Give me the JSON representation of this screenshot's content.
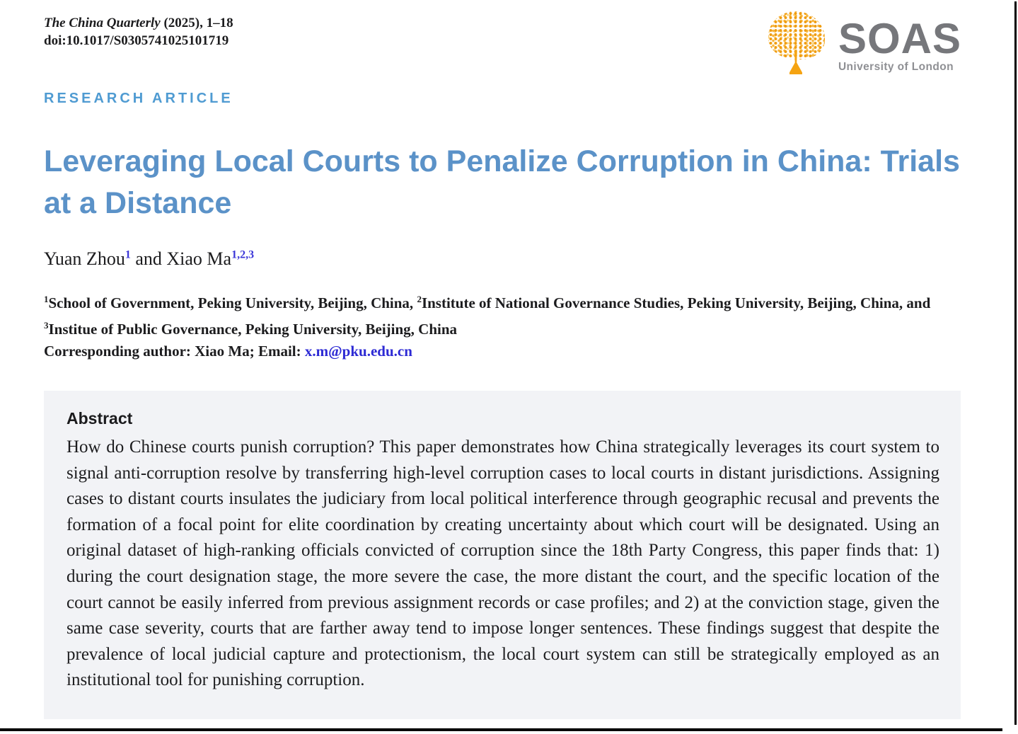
{
  "colors": {
    "title_blue": "#5b92c8",
    "label_blue": "#4f9bd2",
    "superscript_blue": "#3b36d8",
    "link_blue": "#2d2ad4",
    "abstract_bg": "#f2f3f6",
    "text": "#1c1c1e",
    "soas_gray": "#76777b",
    "soas_subtitle_gray": "#8f9094",
    "soas_orange": "#f5a312"
  },
  "header": {
    "journal_name": "The China Quarterly",
    "journal_issue": " (2025), 1–18",
    "doi": "doi:10.1017/S0305741025101719",
    "article_type_label": "RESEARCH ARTICLE"
  },
  "logo": {
    "acronym": "SOAS",
    "subtitle": "University of London"
  },
  "article": {
    "title": "Leveraging Local Courts to Penalize Corruption in China: Trials at a Distance",
    "authors_connector": " and ",
    "authors": [
      {
        "name": "Yuan Zhou",
        "superscript": "1"
      },
      {
        "name": "Xiao Ma",
        "superscript": "1,2,3"
      }
    ],
    "affiliations": [
      {
        "marker": "1",
        "text": "School of Government, Peking University, Beijing, China, "
      },
      {
        "marker": "2",
        "text": "Institute of National Governance Studies, Peking University, Beijing, China, and "
      },
      {
        "marker": "3",
        "text": "Institue of Public Governance, Peking University, Beijing, China"
      }
    ],
    "corresponding": {
      "label": "Corresponding author:",
      "name_part": " Xiao Ma; Email: ",
      "email": "x.m@pku.edu.cn"
    }
  },
  "abstract": {
    "heading": "Abstract",
    "body": "How do Chinese courts punish corruption? This paper demonstrates how China strategically leverages its court system to signal anti-corruption resolve by transferring high-level corruption cases to local courts in distant jurisdictions. Assigning cases to distant courts insulates the judiciary from local political interference through geographic recusal and prevents the formation of a focal point for elite coordination by creating uncertainty about which court will be designated. Using an original dataset of high-ranking officials convicted of corruption since the 18th Party Congress, this paper finds that: 1) during the court designation stage, the more severe the case, the more distant the court, and the specific location of the court cannot be easily inferred from previous assignment records or case profiles; and 2) at the conviction stage, given the same case severity, courts that are farther away tend to impose longer sentences. These findings suggest that despite the prevalence of local judicial capture and protectionism, the local court system can still be strategically employed as an institutional tool for punishing corruption."
  }
}
